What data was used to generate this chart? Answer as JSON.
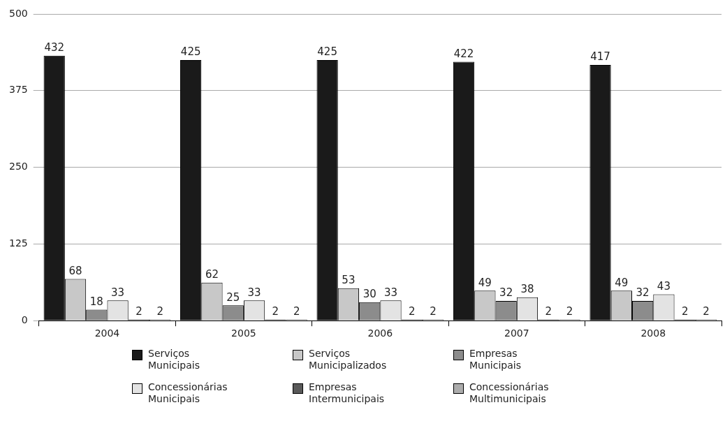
{
  "chart_data": {
    "type": "bar",
    "categories": [
      "2004",
      "2005",
      "2006",
      "2007",
      "2008"
    ],
    "series": [
      {
        "name": "Serviços Municipais",
        "color": "#1a1a1a",
        "values": [
          432,
          425,
          425,
          422,
          417
        ]
      },
      {
        "name": "Serviços Municipalizados",
        "color": "#c8c8c8",
        "values": [
          68,
          62,
          53,
          49,
          49
        ]
      },
      {
        "name": "Empresas Municipais",
        "color": "#8c8c8c",
        "values": [
          18,
          25,
          30,
          32,
          32
        ]
      },
      {
        "name": "Concessionárias Municipais",
        "color": "#e3e3e3",
        "values": [
          33,
          33,
          33,
          38,
          43
        ]
      },
      {
        "name": "Empresas Intermunicipais",
        "color": "#595959",
        "values": [
          2,
          2,
          2,
          2,
          2
        ]
      },
      {
        "name": "Concessionárias Multimunicipais",
        "color": "#acacac",
        "values": [
          2,
          2,
          2,
          2,
          2
        ]
      }
    ],
    "ylim": [
      0,
      500
    ],
    "yticks": [
      0,
      125,
      250,
      375,
      500
    ],
    "grid": "y",
    "legend": "bottom",
    "data_labels": true
  }
}
